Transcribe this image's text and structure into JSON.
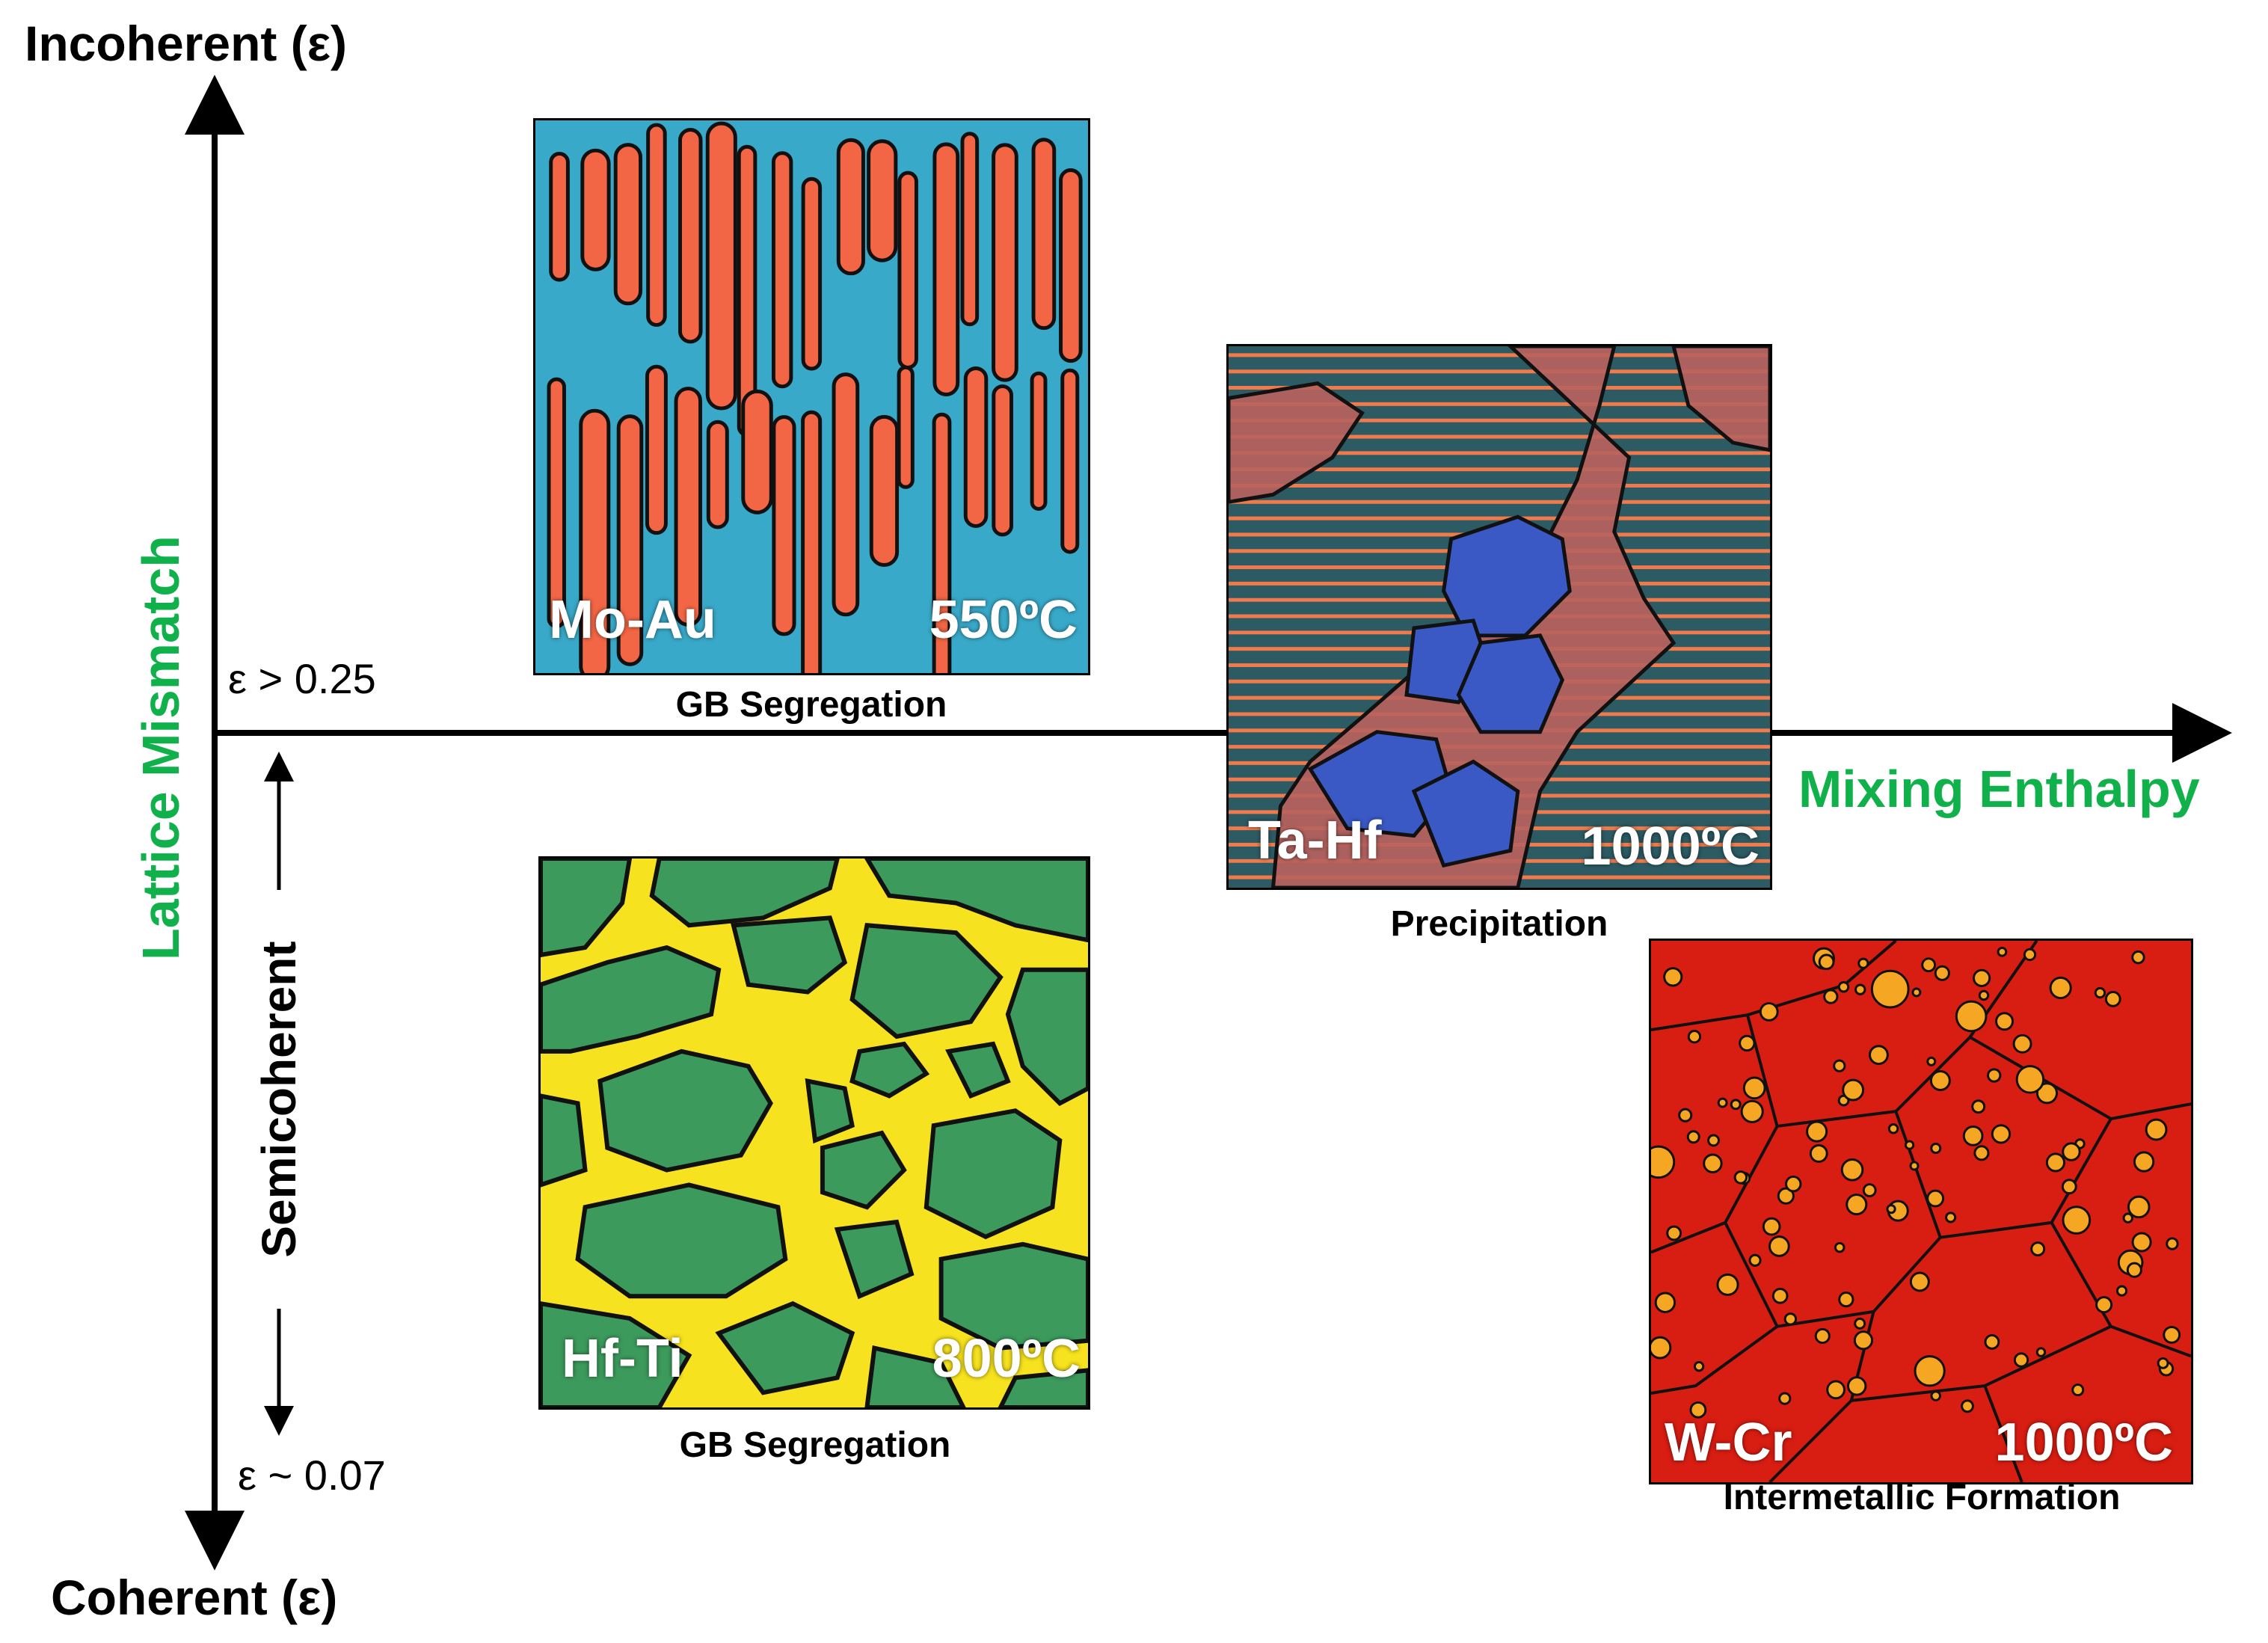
{
  "axes": {
    "y_top_label": "Incoherent (ε)",
    "y_bottom_label": "Coherent (ε)",
    "y_axis_title": "Lattice Mismatch",
    "x_axis_title": "Mixing Enthalpy",
    "semicoherent_label": "Semicoherent",
    "eps_upper": "ε > 0.25",
    "eps_lower": "ε ~ 0.07"
  },
  "panels": [
    {
      "system": "Mo-Au",
      "temperature": "550ºC",
      "caption": "GB Segregation",
      "colors": {
        "matrix": "#39a9c9",
        "phase": "#f26645"
      }
    },
    {
      "system": "Ta-Hf",
      "temperature": "1000ºC",
      "caption": "Precipitation",
      "colors": {
        "stripes": "#2d5b63",
        "phase": "#b9625d",
        "precipitate": "#3a59c4"
      }
    },
    {
      "system": "Hf-Ti",
      "temperature": "800ºC",
      "caption": "GB Segregation",
      "colors": {
        "matrix": "#3c9a5c",
        "phase": "#f6e21e"
      }
    },
    {
      "system": "W-Cr",
      "temperature": "1000ºC",
      "caption": "Intermetallic Formation",
      "colors": {
        "matrix": "#d81d12",
        "phase": "#f5a623"
      }
    }
  ]
}
